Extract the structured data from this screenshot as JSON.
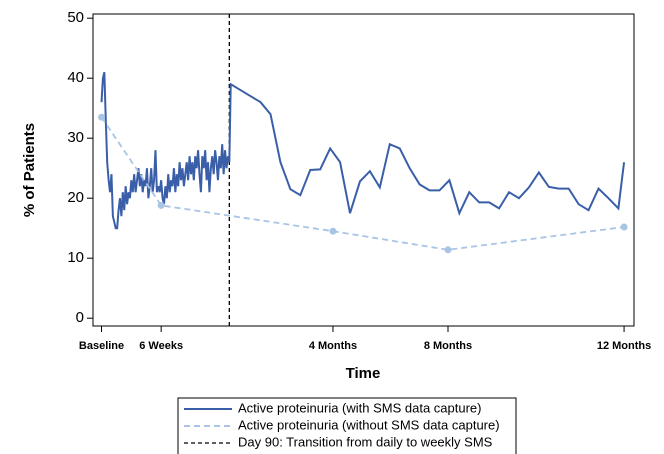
{
  "chart_data": {
    "type": "line",
    "xlabel": "Time",
    "ylabel": "% of Patients",
    "xlim": [
      -6,
      375
    ],
    "ylim": [
      -1.3,
      50.7
    ],
    "xticks": [
      {
        "value": 0,
        "label": "Baseline"
      },
      {
        "value": 42,
        "label": "6 Weeks"
      },
      {
        "value": 163,
        "label": "4 Months"
      },
      {
        "value": 244,
        "label": "8 Months"
      },
      {
        "value": 368,
        "label": "12 Months"
      }
    ],
    "yticks": [
      0,
      10,
      20,
      30,
      40,
      50
    ],
    "series": [
      {
        "name": "Active proteinuria (with SMS data capture)",
        "color": "#3a5fa8",
        "dash": false,
        "markers": false,
        "x": [
          0,
          1,
          2,
          3,
          4,
          5,
          6,
          7,
          8,
          9,
          10,
          11,
          12,
          13,
          14,
          15,
          16,
          17,
          18,
          19,
          20,
          21,
          22,
          23,
          24,
          25,
          26,
          27,
          28,
          29,
          30,
          31,
          32,
          33,
          34,
          35,
          36,
          37,
          38,
          39,
          40,
          41,
          42,
          43,
          44,
          45,
          46,
          47,
          48,
          49,
          50,
          51,
          52,
          53,
          54,
          55,
          56,
          57,
          58,
          59,
          60,
          61,
          62,
          63,
          64,
          65,
          66,
          67,
          68,
          69,
          70,
          71,
          72,
          73,
          74,
          75,
          76,
          77,
          78,
          79,
          80,
          81,
          82,
          83,
          84,
          85,
          86,
          87,
          88,
          89,
          90,
          91,
          98,
          105,
          112,
          119,
          126,
          133,
          140,
          147,
          154,
          161,
          168,
          175,
          182,
          189,
          196,
          203,
          210,
          217,
          224,
          231,
          238,
          245,
          252,
          259,
          266,
          273,
          280,
          287,
          294,
          301,
          308,
          315,
          322,
          329,
          336,
          343,
          350,
          357,
          364,
          368
        ],
        "values": [
          36,
          40,
          41,
          33,
          26,
          23,
          21,
          24,
          17,
          16,
          15,
          15,
          18,
          20,
          17,
          21,
          18,
          22,
          19,
          21,
          20,
          23,
          21,
          24,
          21,
          23,
          25,
          22,
          24,
          21,
          23,
          22,
          25,
          20,
          22,
          25,
          21,
          23,
          28,
          21,
          22,
          21,
          23,
          20,
          19,
          22,
          20,
          24,
          21,
          23,
          22,
          25,
          21,
          24,
          22,
          26,
          23,
          25,
          22,
          24,
          26,
          23,
          27,
          24,
          26,
          23,
          27,
          25,
          28,
          24,
          21,
          27,
          25,
          28,
          23,
          26,
          21,
          25,
          27,
          24,
          28,
          26,
          23,
          27,
          25,
          29,
          24,
          28,
          25,
          27,
          26,
          39,
          38,
          37,
          36,
          34,
          26,
          21.5,
          20.5,
          24.7,
          24.8,
          28.3,
          26,
          17.5,
          22.8,
          24.5,
          21.8,
          29,
          28.3,
          25,
          22.3,
          21.3,
          21.3,
          23,
          17.5,
          21,
          19.3,
          19.3,
          18.3,
          21,
          20,
          21.8,
          24.3,
          21.9,
          21.6,
          21.6,
          19,
          18,
          21.6,
          20,
          18.3,
          26
        ]
      },
      {
        "name": "Active proteinuria (without SMS data capture)",
        "color": "#a9c4e4",
        "dash": true,
        "markers": true,
        "x": [
          0,
          42,
          163,
          244,
          368
        ],
        "values": [
          33.5,
          18.8,
          14.5,
          11.4,
          15.2
        ]
      }
    ],
    "reference_lines": [
      {
        "x": 90,
        "name": "Day 90: Transition from daily to weekly SMS",
        "color": "#000000"
      }
    ]
  }
}
